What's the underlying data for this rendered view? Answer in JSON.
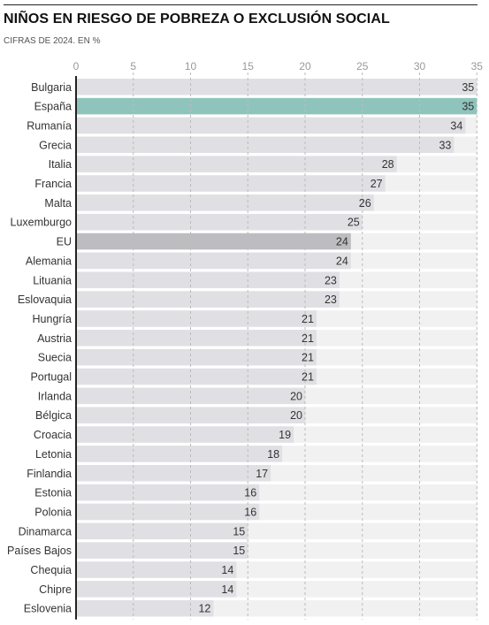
{
  "header": {
    "title": "NIÑOS EN RIESGO DE POBREZA O EXCLUSIÓN SOCIAL",
    "subtitle": "CIFRAS DE 2024. EN %"
  },
  "colors": {
    "bar": "#e0dfe3",
    "highlight": "#8fc4bd",
    "average": "#bdbcc0",
    "track": "#f1f1f1",
    "grid": "#bbbbbb",
    "label": "#333333"
  },
  "chart_data": {
    "type": "bar",
    "orientation": "horizontal",
    "title": "NIÑOS EN RIESGO DE POBREZA O EXCLUSIÓN SOCIAL",
    "subtitle": "CIFRAS DE 2024. EN %",
    "xlim": [
      0,
      35
    ],
    "xticks": [
      "0",
      "5",
      "10",
      "15",
      "20",
      "25",
      "30",
      "35"
    ],
    "grid": true,
    "highlight": "España",
    "average_label": "EU",
    "categories": [
      "Bulgaria",
      "España",
      "Rumanía",
      "Grecia",
      "Italia",
      "Francia",
      "Malta",
      "Luxemburgo",
      "EU",
      "Alemania",
      "Lituania",
      "Eslovaquia",
      "Hungría",
      "Austria",
      "Suecia",
      "Portugal",
      "Irlanda",
      "Bélgica",
      "Croacia",
      "Letonia",
      "Finlandia",
      "Estonia",
      "Polonia",
      "Dinamarca",
      "Países Bajos",
      "Chequia",
      "Chipre",
      "Eslovenia"
    ],
    "values": [
      35,
      35,
      34,
      33,
      28,
      27,
      26,
      25,
      24,
      24,
      23,
      23,
      21,
      21,
      21,
      21,
      20,
      20,
      19,
      18,
      17,
      16,
      16,
      15,
      15,
      14,
      14,
      12
    ]
  }
}
